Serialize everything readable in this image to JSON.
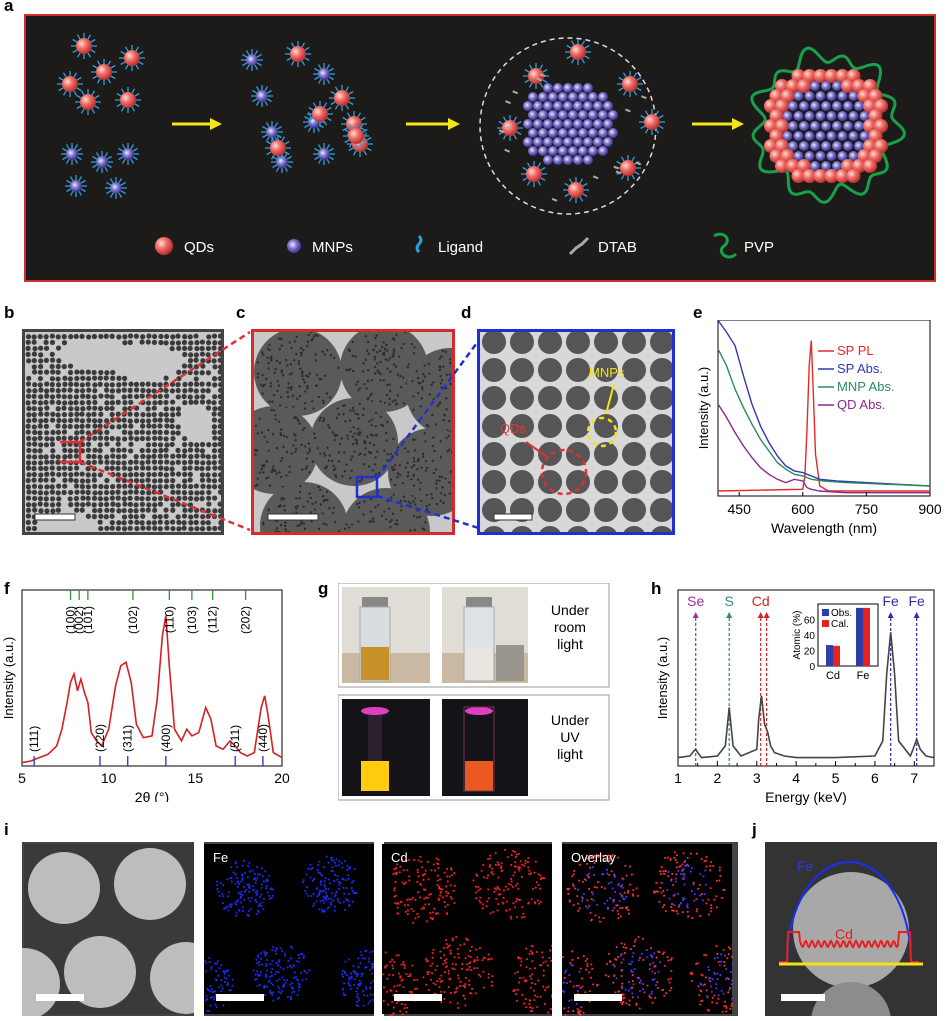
{
  "panels": {
    "a": "a",
    "b": "b",
    "c": "c",
    "d": "d",
    "e": "e",
    "f": "f",
    "g": "g",
    "h": "h",
    "i": "i",
    "j": "j"
  },
  "schematic": {
    "legend": [
      "QDs",
      "MNPs",
      "Ligand",
      "DTAB",
      "PVP"
    ],
    "colors": {
      "qd": "#f2706a",
      "mnp": "#7d74c9",
      "ligand": "#2a9fe0",
      "pvp": "#19a04a",
      "arrow": "#f5e61a",
      "frame": "#d52b2b"
    }
  },
  "panel_d": {
    "qd_label": "QDs",
    "mnp_label": "MNPs"
  },
  "panel_g": {
    "row1": [
      "Under",
      "room",
      "light"
    ],
    "row2": [
      "Under",
      "UV",
      "light"
    ]
  },
  "panel_i": {
    "labels": [
      "Fe",
      "Cd",
      "Overlay"
    ]
  },
  "panel_j": {
    "fe": "Fe",
    "cd": "Cd"
  },
  "chart_data": [
    {
      "id": "e",
      "type": "line",
      "xlabel": "Wavelength (nm)",
      "ylabel": "Intensity (a.u.)",
      "xlim": [
        400,
        900
      ],
      "xticks": [
        450,
        600,
        750,
        900
      ],
      "series": [
        {
          "name": "SP PL",
          "color": "#e32a2a",
          "x": [
            400,
            600,
            605,
            610,
            615,
            620,
            625,
            630,
            640,
            660,
            900
          ],
          "y": [
            0.03,
            0.04,
            0.12,
            0.4,
            0.78,
            0.93,
            0.6,
            0.25,
            0.06,
            0.03,
            0.03
          ]
        },
        {
          "name": "SP Abs.",
          "color": "#2f39b8",
          "x": [
            400,
            420,
            440,
            460,
            480,
            500,
            520,
            540,
            560,
            580,
            600,
            610,
            620,
            640,
            680,
            750,
            900
          ],
          "y": [
            1.05,
            0.98,
            0.9,
            0.72,
            0.55,
            0.42,
            0.32,
            0.24,
            0.18,
            0.15,
            0.14,
            0.13,
            0.12,
            0.1,
            0.09,
            0.08,
            0.06
          ]
        },
        {
          "name": "MNP Abs.",
          "color": "#2d8a5a",
          "x": [
            400,
            420,
            440,
            460,
            480,
            500,
            520,
            540,
            560,
            580,
            600,
            620,
            650,
            700,
            800,
            900
          ],
          "y": [
            0.88,
            0.78,
            0.64,
            0.53,
            0.43,
            0.34,
            0.27,
            0.2,
            0.16,
            0.13,
            0.12,
            0.1,
            0.09,
            0.08,
            0.07,
            0.06
          ]
        },
        {
          "name": "QD Abs.",
          "color": "#8b2a8b",
          "x": [
            400,
            420,
            440,
            460,
            480,
            500,
            520,
            540,
            560,
            580,
            600,
            610,
            620,
            640,
            700,
            900
          ],
          "y": [
            0.55,
            0.47,
            0.38,
            0.3,
            0.23,
            0.17,
            0.13,
            0.1,
            0.08,
            0.1,
            0.09,
            0.05,
            0.04,
            0.03,
            0.02,
            0.02
          ]
        }
      ]
    },
    {
      "id": "f",
      "type": "line",
      "xlabel": "2θ (°)",
      "ylabel": "Intensity (a.u.)",
      "xlim": [
        5,
        20
      ],
      "xticks": [
        5,
        10,
        15,
        20
      ],
      "series": [
        {
          "name": "",
          "color": "#d42020",
          "x": [
            5,
            5.5,
            6,
            6.5,
            7,
            7.3,
            7.6,
            7.8,
            8.0,
            8.2,
            8.4,
            8.6,
            8.8,
            9.0,
            9.3,
            9.6,
            10,
            10.4,
            10.7,
            11,
            11.3,
            11.6,
            12,
            12.5,
            12.8,
            13.1,
            13.3,
            13.5,
            13.8,
            14.2,
            14.5,
            14.8,
            15.2,
            15.6,
            15.9,
            16.2,
            16.6,
            17,
            17.3,
            17.6,
            18,
            18.4,
            18.8,
            19,
            19.2,
            19.5,
            20
          ],
          "y": [
            0.02,
            0.03,
            0.05,
            0.07,
            0.12,
            0.22,
            0.38,
            0.5,
            0.55,
            0.45,
            0.52,
            0.44,
            0.38,
            0.2,
            0.15,
            0.12,
            0.22,
            0.48,
            0.6,
            0.62,
            0.5,
            0.25,
            0.17,
            0.18,
            0.4,
            0.78,
            0.9,
            0.6,
            0.22,
            0.15,
            0.22,
            0.18,
            0.2,
            0.35,
            0.28,
            0.12,
            0.1,
            0.15,
            0.12,
            0.08,
            0.06,
            0.08,
            0.35,
            0.42,
            0.3,
            0.08,
            0.05
          ]
        }
      ],
      "top_ticks": [
        {
          "x": 7.8,
          "label": "(100)"
        },
        {
          "x": 8.3,
          "label": "(002)"
        },
        {
          "x": 8.8,
          "label": "(101)"
        },
        {
          "x": 11.4,
          "label": "(102)"
        },
        {
          "x": 13.5,
          "label": "(110)"
        },
        {
          "x": 14.8,
          "label": "(103)"
        },
        {
          "x": 16,
          "label": "(112)"
        },
        {
          "x": 17.9,
          "label": "(202)"
        }
      ],
      "bottom_ticks": [
        {
          "x": 5.7,
          "label": "(111)"
        },
        {
          "x": 9.5,
          "label": "(220)"
        },
        {
          "x": 11.1,
          "label": "(311)"
        },
        {
          "x": 13.3,
          "label": "(400)"
        },
        {
          "x": 17.3,
          "label": "(511)"
        },
        {
          "x": 18.9,
          "label": "(440)"
        }
      ]
    },
    {
      "id": "h",
      "type": "line",
      "xlabel": "Energy (keV)",
      "ylabel": "Intensity (a.u.)",
      "xlim": [
        1,
        7.5
      ],
      "xticks": [
        1,
        1.5,
        2,
        2.5,
        3,
        3.5,
        4,
        4.5,
        5,
        5.5,
        6,
        6.5,
        7
      ],
      "series": [
        {
          "name": "",
          "color": "#444444",
          "x": [
            1,
            1.3,
            1.4,
            1.45,
            1.5,
            1.6,
            2,
            2.2,
            2.3,
            2.4,
            2.6,
            3,
            3.05,
            3.12,
            3.2,
            3.28,
            3.35,
            3.45,
            3.7,
            4,
            5,
            6,
            6.2,
            6.3,
            6.4,
            6.5,
            6.6,
            6.9,
            7.0,
            7.06,
            7.15,
            7.3,
            7.5
          ],
          "y": [
            0.05,
            0.06,
            0.09,
            0.1,
            0.08,
            0.05,
            0.06,
            0.12,
            0.35,
            0.12,
            0.06,
            0.1,
            0.28,
            0.42,
            0.25,
            0.2,
            0.12,
            0.08,
            0.06,
            0.05,
            0.05,
            0.06,
            0.15,
            0.55,
            0.8,
            0.55,
            0.15,
            0.06,
            0.12,
            0.16,
            0.1,
            0.06,
            0.05
          ]
        }
      ],
      "markers": [
        {
          "x": 1.45,
          "label": "Se",
          "color": "#9b2f9b"
        },
        {
          "x": 2.3,
          "label": "S",
          "color": "#2f8a7a"
        },
        {
          "x": 3.1,
          "label": "Cd",
          "color": "#d42020"
        },
        {
          "x": 3.25,
          "label": "",
          "color": "#d42020"
        },
        {
          "x": 6.4,
          "label": "Fe",
          "color": "#3030a0"
        },
        {
          "x": 7.06,
          "label": "Fe",
          "color": "#3030a0"
        }
      ],
      "inset": {
        "type": "bar",
        "ylabel": "Atomic (%)",
        "categories": [
          "Cd",
          "Fe"
        ],
        "ylim": [
          0,
          80
        ],
        "yticks": [
          0,
          20,
          40,
          60
        ],
        "series": [
          {
            "name": "Obs.",
            "color": "#2e3ea8",
            "values": [
              27,
              75
            ]
          },
          {
            "name": "Cal.",
            "color": "#e82020",
            "values": [
              26,
              75
            ]
          }
        ]
      }
    }
  ]
}
